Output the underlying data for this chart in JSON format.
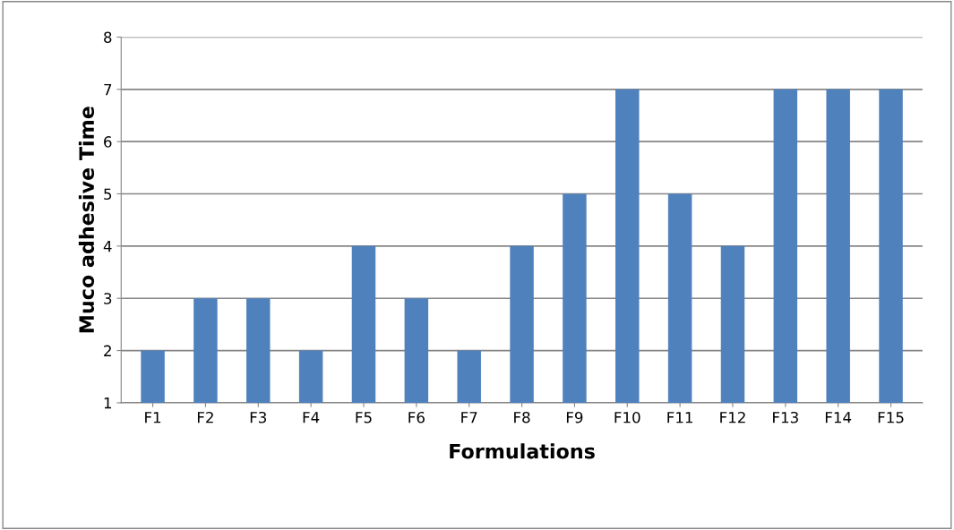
{
  "chart_data": {
    "type": "bar",
    "xlabel": "Formulations",
    "ylabel": "Muco adhesive Time",
    "categories": [
      "F1",
      "F2",
      "F3",
      "F4",
      "F5",
      "F6",
      "F7",
      "F8",
      "F9",
      "F10",
      "F11",
      "F12",
      "F13",
      "F14",
      "F15"
    ],
    "values": [
      2,
      3,
      3,
      2,
      4,
      3,
      2,
      4,
      5,
      7,
      5,
      4,
      7,
      7,
      7
    ],
    "color": "#4f81bd",
    "ylim": [
      1,
      8
    ],
    "yticks": [
      1,
      2,
      3,
      4,
      5,
      6,
      7,
      8
    ],
    "grid": "y"
  }
}
